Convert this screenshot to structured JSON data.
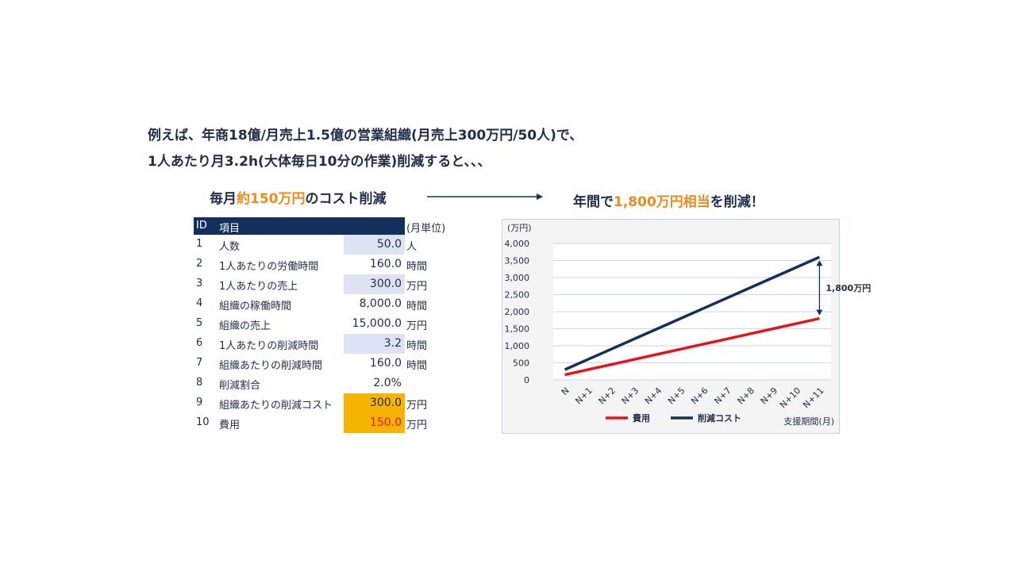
{
  "intro": {
    "line1": "例えば、年商18億/月売上1.5億の営業組織(月売上300万円/50人)で、",
    "line2": "1人あたり月3.2h(大体毎日10分の作業)削減すると、、、"
  },
  "left_head": {
    "pre": "毎月",
    "highlight": "約150万円",
    "post": "のコスト削減"
  },
  "right_head": {
    "pre": "年間で",
    "highlight": "1,800万円相当",
    "post": "を削減！"
  },
  "colors": {
    "navy": "#12305c",
    "highlight": "#f08a1e",
    "input_bg": "#dde3f2",
    "hot_bg": "#f5b400",
    "red": "#e8121a"
  },
  "table": {
    "headers": {
      "id": "ID",
      "item": "項目",
      "unit": "(月単位)"
    },
    "rows": [
      {
        "id": "1",
        "name": "人数",
        "value": "50.0",
        "unit": "人",
        "style": "input"
      },
      {
        "id": "2",
        "name": "1人あたりの労働時間",
        "value": "160.0",
        "unit": "時間",
        "style": ""
      },
      {
        "id": "3",
        "name": "1人あたりの売上",
        "value": "300.0",
        "unit": "万円",
        "style": "input"
      },
      {
        "id": "4",
        "name": "組織の稼働時間",
        "value": "8,000.0",
        "unit": "時間",
        "style": ""
      },
      {
        "id": "5",
        "name": "組織の売上",
        "value": "15,000.0",
        "unit": "万円",
        "style": ""
      },
      {
        "id": "6",
        "name": "1人あたりの削減時間",
        "value": "3.2",
        "unit": "時間",
        "style": "input"
      },
      {
        "id": "7",
        "name": "組織あたりの削減時間",
        "value": "160.0",
        "unit": "時間",
        "style": ""
      },
      {
        "id": "8",
        "name": "削減割合",
        "value": "2.0%",
        "unit": "",
        "style": ""
      },
      {
        "id": "9",
        "name": "組織あたりの削減コスト",
        "value": "300.0",
        "unit": "万円",
        "style": "hot"
      },
      {
        "id": "10",
        "name": "費用",
        "value": "150.0",
        "unit": "万円",
        "style": "hot-red"
      }
    ]
  },
  "chart_data": {
    "type": "line",
    "ylabel": "(万円)",
    "xlabel": "支援期間(月)",
    "categories": [
      "N",
      "N+1",
      "N+2",
      "N+3",
      "N+4",
      "N+5",
      "N+6",
      "N+7",
      "N+8",
      "N+9",
      "N+10",
      "N+11"
    ],
    "ylim": [
      0,
      4000
    ],
    "yticks": [
      "4,000",
      "3,500",
      "3,000",
      "2,500",
      "2,000",
      "1,500",
      "1,000",
      "500",
      "0"
    ],
    "grid": true,
    "legend_position": "bottom",
    "annotation": "1,800万円",
    "series": [
      {
        "name": "費用",
        "color": "#e8121a",
        "values": [
          150,
          300,
          450,
          600,
          750,
          900,
          1050,
          1200,
          1350,
          1500,
          1650,
          1800
        ]
      },
      {
        "name": "削減コスト",
        "color": "#12305c",
        "values": [
          300,
          600,
          900,
          1200,
          1500,
          1800,
          2100,
          2400,
          2700,
          3000,
          3300,
          3600
        ]
      }
    ]
  }
}
